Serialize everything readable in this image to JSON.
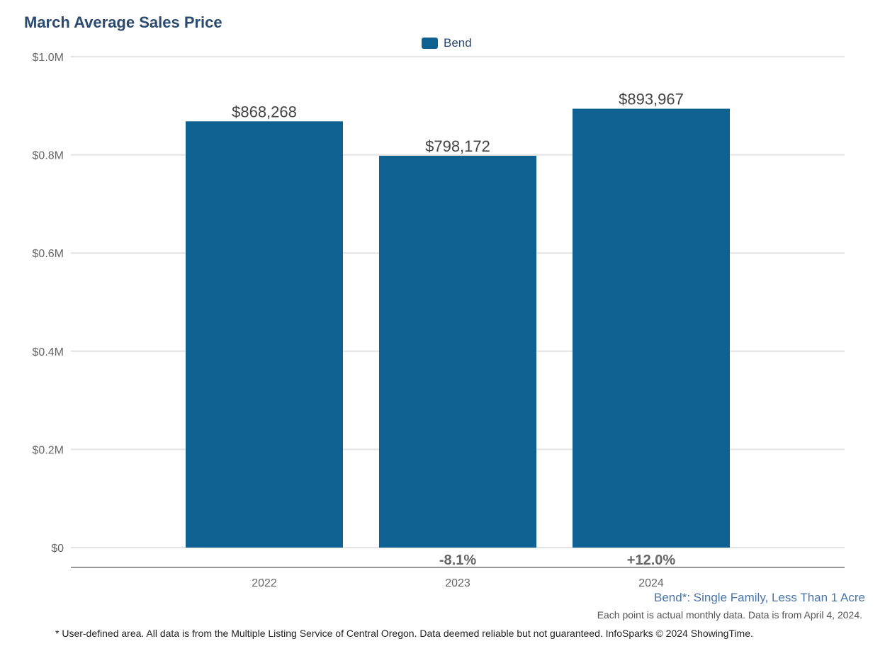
{
  "chart_data": {
    "type": "bar",
    "title": "March Average Sales Price",
    "categories": [
      "2022",
      "2023",
      "2024"
    ],
    "series": [
      {
        "name": "Bend",
        "values": [
          868268,
          798172,
          893967
        ],
        "color": "#0f6192"
      }
    ],
    "data_labels": [
      "$868,268",
      "$798,172",
      "$893,967"
    ],
    "change_labels": [
      "",
      "-8.1%",
      "+12.0%"
    ],
    "ylim": [
      0,
      1000000
    ],
    "yticks": [
      0,
      200000,
      400000,
      600000,
      800000,
      1000000
    ],
    "ytick_labels": [
      "$0",
      "$0.2M",
      "$0.4M",
      "$0.6M",
      "$0.8M",
      "$1.0M"
    ],
    "grid": true,
    "legend": "top-center"
  },
  "notes": {
    "area": "Bend*: Single Family, Less Than 1 Acre",
    "data_note": "Each point is actual monthly data. Data is from April 4, 2024.",
    "footer": "* User-defined area. All data is from the Multiple Listing Service of Central Oregon. Data deemed reliable but not guaranteed. InfoSparks © 2024 ShowingTime."
  }
}
